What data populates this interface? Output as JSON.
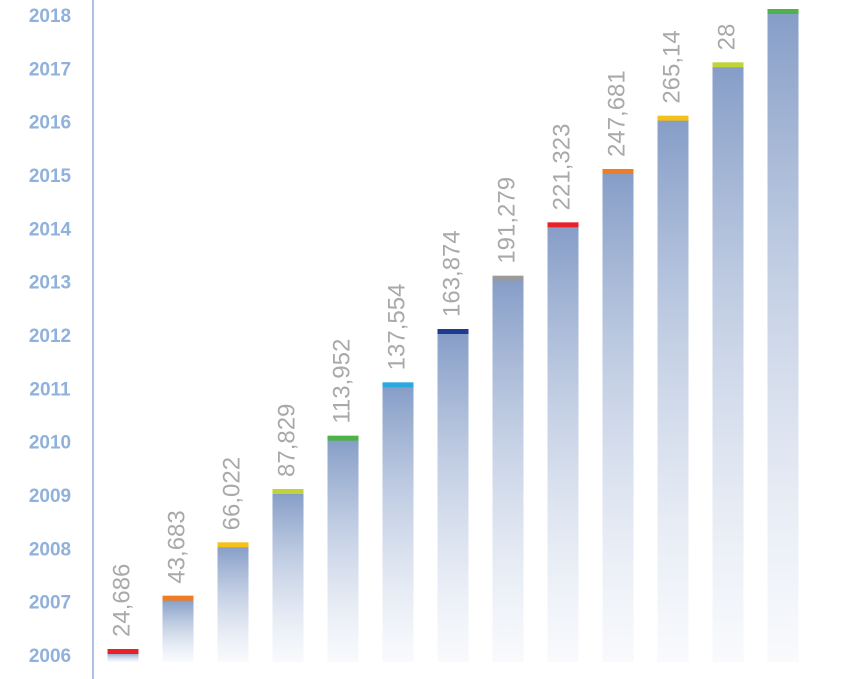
{
  "axis": {
    "years": [
      "2006",
      "2007",
      "2008",
      "2009",
      "2010",
      "2011",
      "2012",
      "2013",
      "2014",
      "2015",
      "2016",
      "2017",
      "2018"
    ]
  },
  "bars": [
    {
      "label": "24,686",
      "color": "#e8202a"
    },
    {
      "label": "43,683",
      "color": "#ee7d24"
    },
    {
      "label": "66,022",
      "color": "#f5c018"
    },
    {
      "label": "87,829",
      "color": "#c2d335"
    },
    {
      "label": "113,952",
      "color": "#4db24a"
    },
    {
      "label": "137,554",
      "color": "#28a9e0"
    },
    {
      "label": "163,874",
      "color": "#1f3a8f"
    },
    {
      "label": "191,279",
      "color": "#9a9a9a"
    },
    {
      "label": "221,323",
      "color": "#e8202a"
    },
    {
      "label": "247,681",
      "color": "#ee7d24"
    },
    {
      "label": "265,14",
      "color": "#f5c018"
    },
    {
      "label": "28",
      "color": "#c2d335"
    },
    {
      "color": "#4db24a"
    }
  ]
}
